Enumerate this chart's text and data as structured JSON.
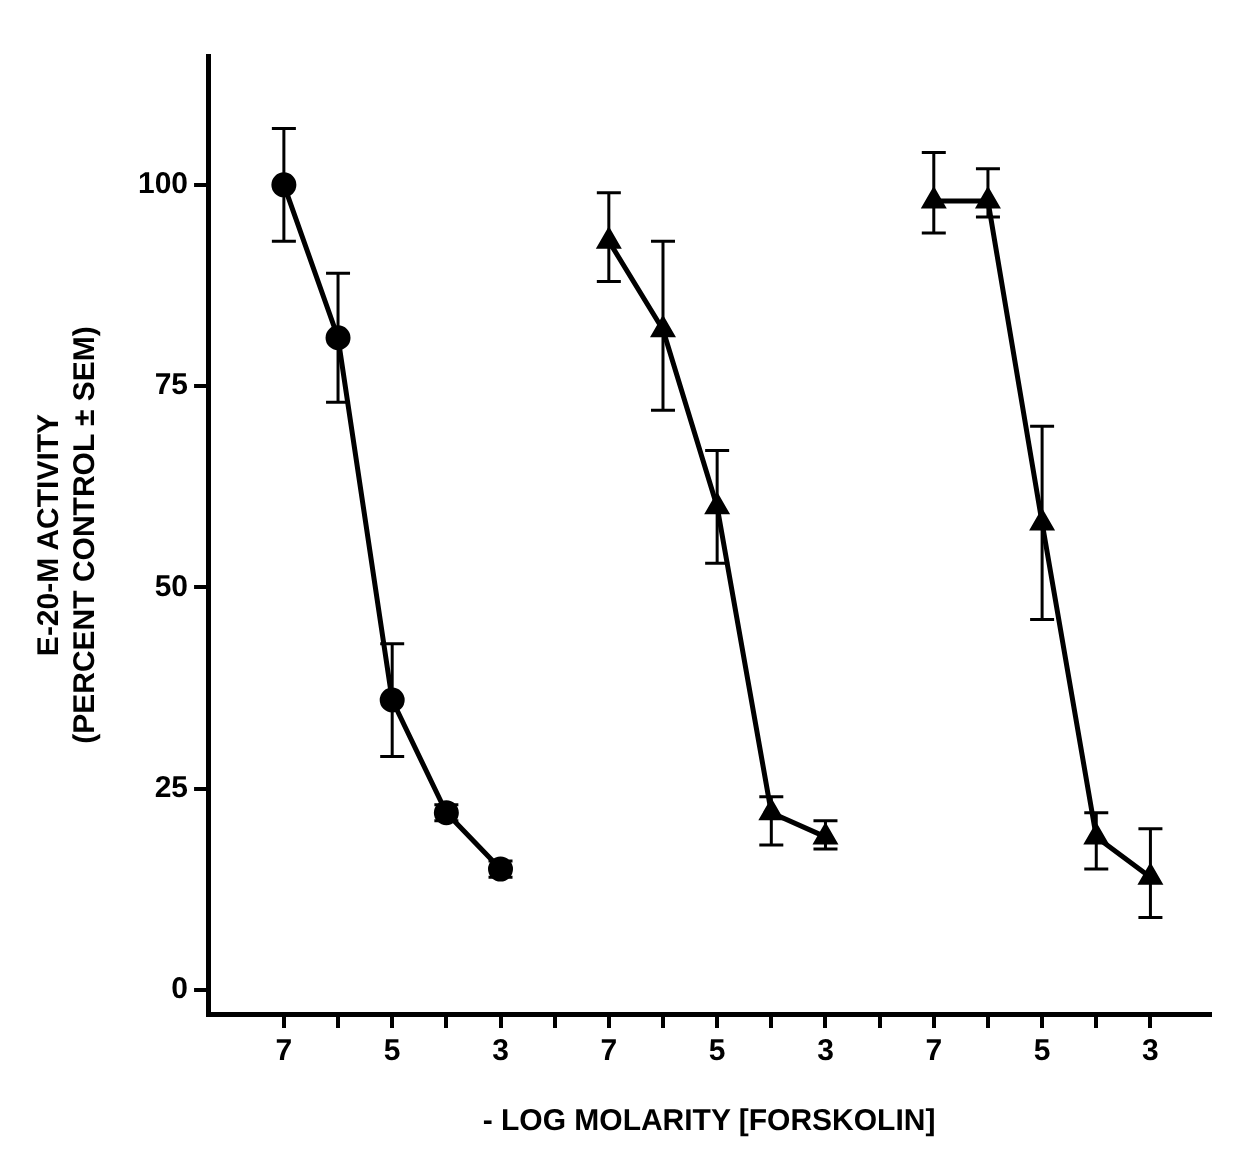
{
  "chart_data": {
    "type": "line",
    "xlabel": "- LOG MOLARITY [FORSKOLIN]",
    "ylabel": "E-20-M ACTIVITY\n(PERCENT CONTROL ± SEM)",
    "categories": [
      "7",
      null,
      "5",
      null,
      "3",
      null,
      "7",
      null,
      "5",
      null,
      "3",
      null,
      "7",
      null,
      "5",
      null,
      "3"
    ],
    "ylim": [
      -3,
      116
    ],
    "yticks": [
      0,
      25,
      50,
      75,
      100
    ],
    "grid": false,
    "legend": false,
    "line_style": "solid",
    "series": [
      {
        "color": "#000000",
        "marker": "circle",
        "values": [
          100,
          81,
          36,
          22,
          15,
          null,
          null,
          null,
          null,
          null,
          null,
          null,
          null,
          null,
          null,
          null,
          null
        ],
        "errors": [
          [
            93,
            107
          ],
          [
            73,
            89
          ],
          [
            29,
            43
          ],
          [
            21,
            23
          ],
          [
            14,
            16
          ],
          null,
          null,
          null,
          null,
          null,
          null,
          null,
          null,
          null,
          null,
          null,
          null
        ]
      },
      {
        "color": "#000000",
        "marker": "triangle",
        "values": [
          null,
          null,
          null,
          null,
          null,
          null,
          93,
          82,
          60,
          22,
          19,
          null,
          null,
          null,
          null,
          null,
          null
        ],
        "errors": [
          null,
          null,
          null,
          null,
          null,
          null,
          [
            88,
            99
          ],
          [
            72,
            93
          ],
          [
            53,
            67
          ],
          [
            18,
            24
          ],
          [
            17.5,
            21
          ],
          null,
          null,
          null,
          null,
          null,
          null
        ]
      },
      {
        "color": "#000000",
        "marker": "triangle",
        "values": [
          null,
          null,
          null,
          null,
          null,
          null,
          null,
          null,
          null,
          null,
          null,
          null,
          98,
          98,
          58,
          19,
          14
        ],
        "errors": [
          null,
          null,
          null,
          null,
          null,
          null,
          null,
          null,
          null,
          null,
          null,
          null,
          [
            94,
            104
          ],
          [
            96,
            102
          ],
          [
            46,
            70
          ],
          [
            15,
            22
          ],
          [
            9,
            20
          ]
        ]
      }
    ]
  }
}
